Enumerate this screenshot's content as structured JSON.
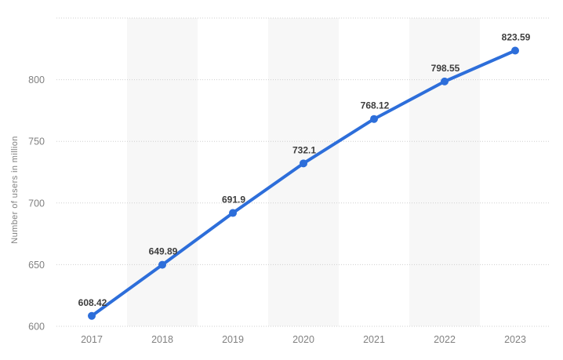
{
  "chart_data": {
    "type": "line",
    "title": "",
    "xlabel": "",
    "ylabel": "Number of users in million",
    "categories": [
      "2017",
      "2018",
      "2019",
      "2020",
      "2021",
      "2022",
      "2023"
    ],
    "values": [
      608.42,
      649.89,
      691.9,
      732.1,
      768.12,
      798.55,
      823.59
    ],
    "point_labels": [
      "608.42",
      "649.89",
      "691.9",
      "732.1",
      "768.12",
      "798.55",
      "823.59"
    ],
    "yticks": [
      600,
      650,
      700,
      750,
      800
    ],
    "ytick_labels": [
      "600",
      "650",
      "700",
      "750",
      "800"
    ],
    "ylim": [
      600,
      850
    ],
    "grid": "horizontal-dotted",
    "legend_position": "none",
    "colors": {
      "line": "#2d6eda",
      "marker": "#2d6eda",
      "band": "#f7f7f7",
      "point_label": "#3d3d3d",
      "axis_text": "#818181",
      "gridline": "#cfcfcf",
      "background": "#ffffff"
    }
  }
}
